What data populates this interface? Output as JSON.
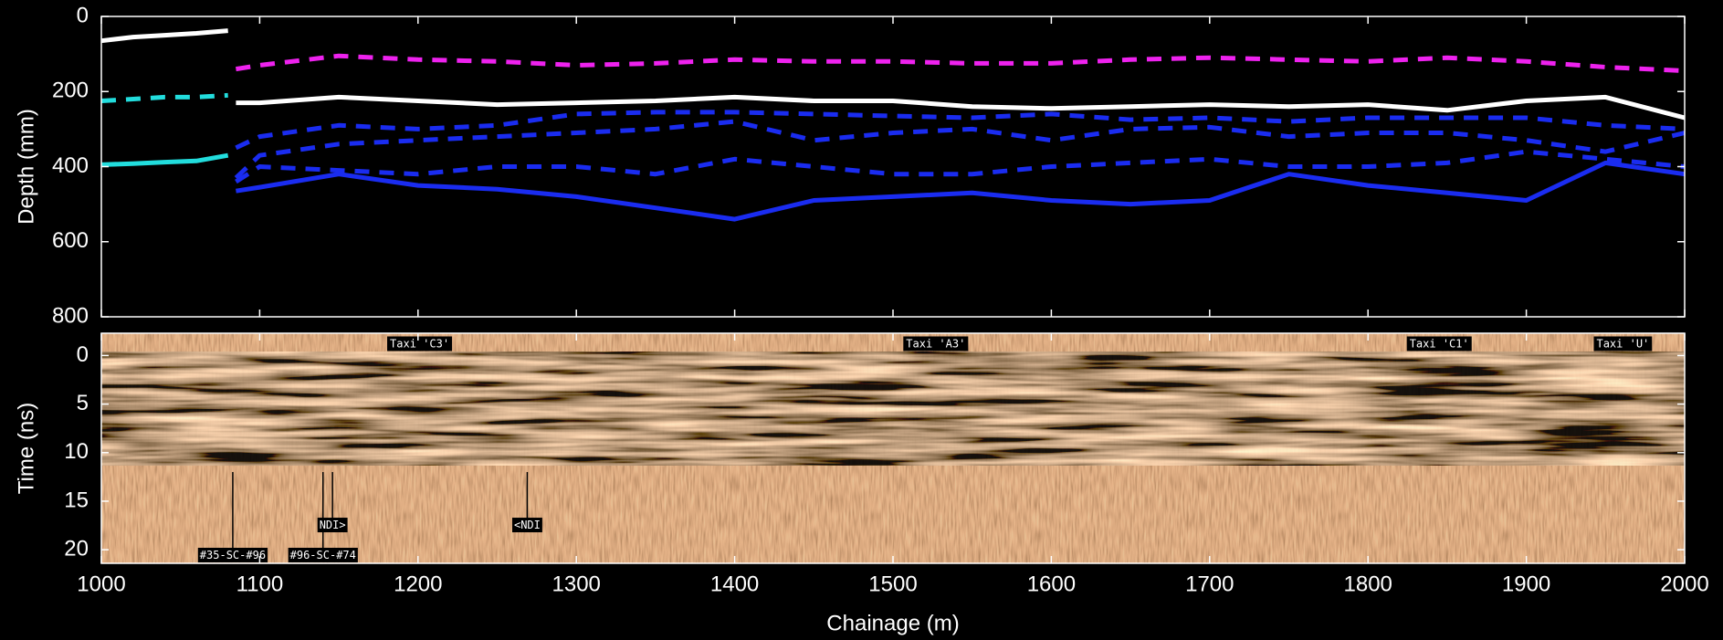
{
  "chart_data": [
    {
      "type": "line",
      "ylabel": "Depth (mm)",
      "xlim": [
        1000,
        2000
      ],
      "xticks": [
        1000,
        1100,
        1200,
        1300,
        1400,
        1500,
        1600,
        1700,
        1800,
        1900,
        2000
      ],
      "ylim": [
        0,
        800
      ],
      "yticks": [
        0,
        200,
        400,
        600,
        800
      ],
      "y_inverted": true,
      "series": [
        {
          "color": "#ffffff",
          "dashed": false,
          "x": [
            1000,
            1020,
            1040,
            1060,
            1080
          ],
          "values": [
            65,
            55,
            50,
            45,
            38
          ]
        },
        {
          "color": "#22dddd",
          "dashed": true,
          "x": [
            1000,
            1020,
            1040,
            1060,
            1080
          ],
          "values": [
            225,
            220,
            215,
            215,
            210
          ]
        },
        {
          "color": "#22dddd",
          "dashed": false,
          "x": [
            1000,
            1020,
            1040,
            1060,
            1080
          ],
          "values": [
            395,
            392,
            388,
            385,
            370
          ]
        },
        {
          "color": "#ee22ee",
          "dashed": true,
          "x": [
            1085,
            1100,
            1150,
            1200,
            1250,
            1300,
            1350,
            1400,
            1450,
            1500,
            1550,
            1600,
            1650,
            1700,
            1750,
            1800,
            1850,
            1900,
            1950,
            2000
          ],
          "values": [
            140,
            130,
            105,
            115,
            120,
            130,
            125,
            115,
            120,
            120,
            125,
            125,
            115,
            110,
            115,
            120,
            110,
            120,
            135,
            145
          ]
        },
        {
          "color": "#ffffff",
          "dashed": false,
          "x": [
            1085,
            1100,
            1150,
            1200,
            1250,
            1300,
            1350,
            1400,
            1450,
            1500,
            1550,
            1600,
            1650,
            1700,
            1750,
            1800,
            1850,
            1900,
            1950,
            2000
          ],
          "values": [
            230,
            230,
            215,
            225,
            235,
            230,
            225,
            215,
            225,
            225,
            240,
            245,
            240,
            235,
            240,
            235,
            250,
            225,
            215,
            270
          ]
        },
        {
          "color": "#1a2cf0",
          "dashed": true,
          "x": [
            1085,
            1100,
            1150,
            1200,
            1250,
            1300,
            1350,
            1400,
            1450,
            1500,
            1550,
            1600,
            1650,
            1700,
            1750,
            1800,
            1850,
            1900,
            1950,
            2000
          ],
          "values": [
            350,
            320,
            290,
            300,
            290,
            260,
            255,
            255,
            260,
            265,
            270,
            260,
            275,
            270,
            280,
            270,
            270,
            270,
            290,
            300
          ]
        },
        {
          "color": "#1a2cf0",
          "dashed": true,
          "x": [
            1085,
            1100,
            1150,
            1200,
            1250,
            1300,
            1350,
            1400,
            1450,
            1500,
            1550,
            1600,
            1650,
            1700,
            1750,
            1800,
            1850,
            1900,
            1950,
            2000
          ],
          "values": [
            430,
            370,
            340,
            330,
            320,
            310,
            300,
            280,
            330,
            310,
            300,
            330,
            300,
            295,
            320,
            310,
            310,
            330,
            360,
            310
          ]
        },
        {
          "color": "#1a2cf0",
          "dashed": true,
          "x": [
            1085,
            1100,
            1150,
            1200,
            1250,
            1300,
            1350,
            1400,
            1450,
            1500,
            1550,
            1600,
            1650,
            1700,
            1750,
            1800,
            1850,
            1900,
            1950,
            2000
          ],
          "values": [
            440,
            400,
            410,
            420,
            400,
            400,
            420,
            380,
            400,
            420,
            420,
            400,
            390,
            380,
            400,
            400,
            390,
            360,
            380,
            400
          ]
        },
        {
          "color": "#1a2cf0",
          "dashed": false,
          "x": [
            1085,
            1100,
            1150,
            1200,
            1250,
            1300,
            1350,
            1400,
            1450,
            1500,
            1550,
            1600,
            1650,
            1700,
            1750,
            1800,
            1850,
            1900,
            1950,
            2000
          ],
          "values": [
            465,
            455,
            420,
            450,
            460,
            480,
            510,
            540,
            490,
            480,
            470,
            490,
            500,
            490,
            420,
            450,
            470,
            490,
            390,
            420
          ]
        }
      ]
    },
    {
      "type": "radargram",
      "ylabel": "Time (ns)",
      "xlabel": "Chainage (m)",
      "xlim": [
        1000,
        2000
      ],
      "xticks": [
        1000,
        1100,
        1200,
        1300,
        1400,
        1500,
        1600,
        1700,
        1800,
        1900,
        2000
      ],
      "ylim": [
        -2.3,
        21.4
      ],
      "yticks": [
        0,
        5,
        10,
        15,
        20
      ],
      "y_inverted": true,
      "annotations": [
        {
          "x": 1201,
          "label": "Taxi 'C3'"
        },
        {
          "x": 1527,
          "label": "Taxi 'A3'"
        },
        {
          "x": 1845,
          "label": "Taxi 'C1'"
        },
        {
          "x": 1961,
          "label": "Taxi 'U'"
        }
      ],
      "markers": [
        {
          "x": 1083,
          "label": "#35-SC-#96"
        },
        {
          "x": 1140,
          "label": "#96-SC-#74"
        },
        {
          "x": 1146,
          "label": "NDI>"
        },
        {
          "x": 1269,
          "label": "<NDI"
        }
      ]
    }
  ]
}
